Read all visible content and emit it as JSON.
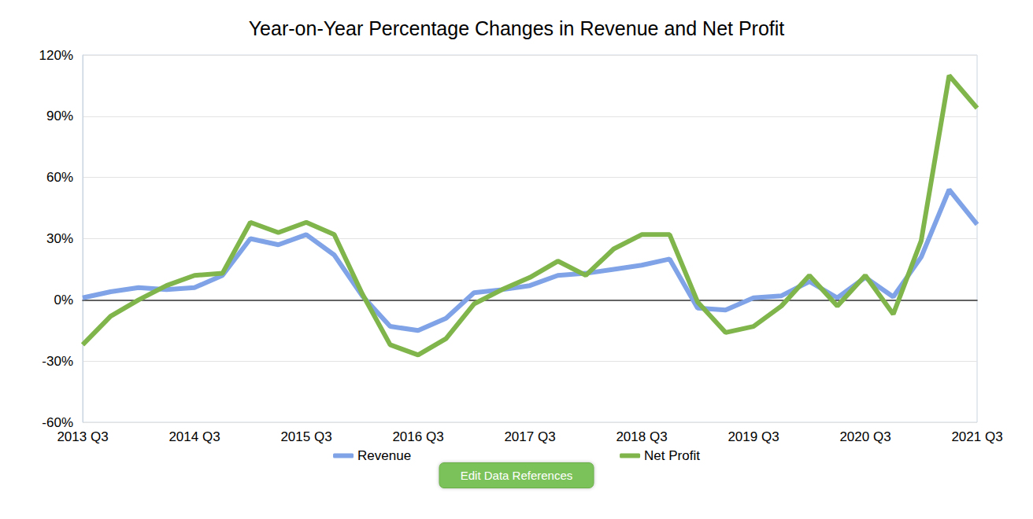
{
  "chart_data": {
    "type": "line",
    "title": "Year-on-Year Percentage Changes in Revenue and Net Profit",
    "annotation": "Edit Data References",
    "categories": [
      "2013 Q3",
      null,
      null,
      null,
      "2014 Q3",
      null,
      null,
      null,
      "2015 Q3",
      null,
      null,
      null,
      "2016 Q3",
      null,
      null,
      null,
      "2017 Q3",
      null,
      null,
      null,
      "2018 Q3",
      null,
      null,
      null,
      "2019 Q3",
      null,
      null,
      null,
      "2020 Q3",
      null,
      null,
      null,
      "2021 Q3"
    ],
    "series": [
      {
        "name": "Revenue",
        "color": "#7fa3e6",
        "values": [
          1,
          4,
          6,
          5,
          6,
          12,
          30,
          27,
          32,
          22,
          2,
          -13,
          -15,
          -9,
          3.5,
          5,
          7,
          12,
          13,
          15,
          17,
          20,
          -4,
          -5,
          1,
          2,
          9,
          1,
          11,
          1.5,
          21,
          54,
          37
        ]
      },
      {
        "name": "Net Profit",
        "color": "#80b54c",
        "values": [
          -22,
          -8,
          0,
          7,
          12,
          13,
          38,
          33,
          38,
          32,
          3,
          -22,
          -27,
          -19,
          -2,
          5,
          11,
          19,
          12,
          25,
          32,
          32,
          -1,
          -16,
          -13,
          -3,
          12,
          -3,
          12,
          -7,
          29,
          110,
          94
        ]
      }
    ],
    "ylim": [
      -60,
      120
    ],
    "yticks": [
      {
        "value": -60,
        "label": "-60%"
      },
      {
        "value": -30,
        "label": "-30%"
      },
      {
        "value": 0,
        "label": "0%"
      },
      {
        "value": 30,
        "label": "30%"
      },
      {
        "value": 60,
        "label": "60%"
      },
      {
        "value": 90,
        "label": "90%"
      },
      {
        "value": 120,
        "label": "120%"
      }
    ],
    "grid": true,
    "legend": "bottom"
  }
}
